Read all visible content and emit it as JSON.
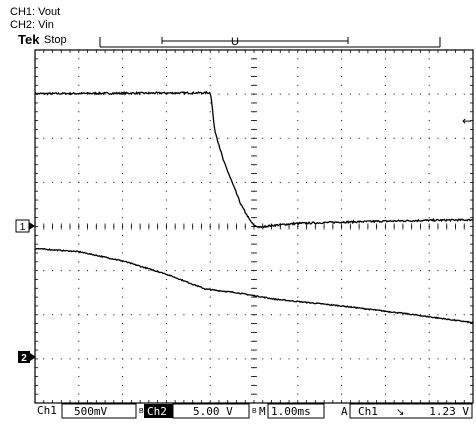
{
  "header": {
    "channel_labels": [
      "CH1: Vout",
      "CH2: Vin"
    ],
    "brand": "Tek",
    "state": "Stop"
  },
  "markers": {
    "trigger_top": "T",
    "trigger_pos": "U",
    "ch1_marker": "1",
    "ch2_marker": "2",
    "level_arrow": "←"
  },
  "status_bar": {
    "ch1": "Ch1",
    "ch1_scale": "500mV",
    "ch1_suffix": "B",
    "ch2": "Ch2",
    "ch2_scale": "5.00 V",
    "ch2_suffix": "B",
    "time_prefix": "M",
    "timebase": "1.00ms",
    "trig_mode": "A",
    "trig_source": "Ch1",
    "trig_slope": "↘",
    "trig_level": "1.23 V"
  },
  "chart_data": {
    "type": "line",
    "grid": true,
    "x_divisions": 10,
    "y_divisions": 8,
    "xlim": [
      0,
      10
    ],
    "ylim": [
      0,
      8
    ],
    "series": [
      {
        "name": "CH1: Vout",
        "color": "#000000",
        "noise": 0.02,
        "x": [
          0,
          4.0,
          4.02,
          4.1,
          4.3,
          4.5,
          4.7,
          4.9,
          5.0,
          5.15,
          5.3,
          5.6,
          6.0,
          7.0,
          8.0,
          9.0,
          10.0
        ],
        "y": [
          7.01,
          7.03,
          6.95,
          6.2,
          5.5,
          5.0,
          4.5,
          4.15,
          4.02,
          3.98,
          4.01,
          4.04,
          4.07,
          4.1,
          4.12,
          4.14,
          4.15
        ]
      },
      {
        "name": "CH2: Vin",
        "color": "#000000",
        "noise": 0.012,
        "x": [
          0,
          1.0,
          2.0,
          3.0,
          3.9,
          4.6,
          5.5,
          7.0,
          8.5,
          10.0
        ],
        "y": [
          3.5,
          3.43,
          3.22,
          2.92,
          2.58,
          2.5,
          2.35,
          2.2,
          2.02,
          1.82
        ]
      }
    ]
  }
}
